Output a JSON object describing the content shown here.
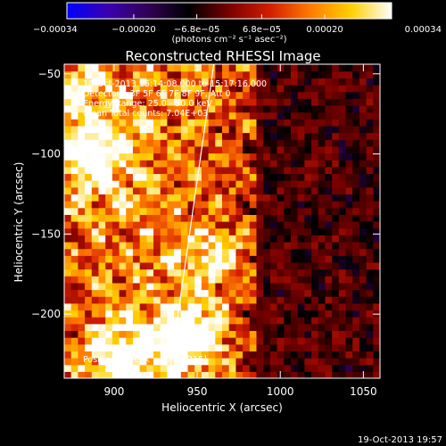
{
  "chart_data": {
    "type": "heatmap",
    "title": "Reconstructed RHESSI Image",
    "xlabel": "Heliocentric X (arcsec)",
    "ylabel": "Heliocentric Y (arcsec)",
    "xlim": [
      870,
      1060
    ],
    "ylim": [
      -240,
      -44
    ],
    "x_ticks": [
      900,
      950,
      1000,
      1050
    ],
    "x_tick_labels": [
      "900",
      "950",
      "1000",
      "1050"
    ],
    "y_ticks": [
      -50,
      -100,
      -150,
      -200
    ],
    "y_tick_labels": [
      "−50",
      "−100",
      "−150",
      "−200"
    ],
    "colorbar": {
      "range": [
        -0.00034,
        0.00034
      ],
      "ticks": [
        -0.00034,
        -0.0002,
        -6.8e-05,
        6.8e-05,
        0.0002,
        0.00034
      ],
      "tick_labels": [
        "−0.00034",
        "−0.00020",
        "−6.8e−05",
        "6.8e−05",
        "0.00020",
        "0.00034"
      ],
      "units_label": "(photons cm⁻² s⁻¹ asec⁻²)",
      "colormap": [
        "#0000ff",
        "#3a00b0",
        "#330055",
        "#000000",
        "#7a0000",
        "#d21e00",
        "#ff7a00",
        "#ffd000",
        "#ffffff"
      ]
    },
    "annotations": [
      "18-Oct-2013 15:14:08.000 to 15:17:16.000",
      "Detectors: 3F 5F 6F 7F 8F 9F, Att 0",
      "Energy Range: 25.0 - 50.0 keV",
      "Clean     Total counts: 7.04E+03"
    ],
    "peak_label": "Position of Peak = [945,-215]",
    "peak": [
      945,
      -215
    ],
    "limb_line": [
      [
        933,
        -240
      ],
      [
        960,
        -44
      ]
    ],
    "bright_sources": [
      {
        "x": 945,
        "y": -215,
        "intensity": 1.0
      },
      {
        "x": 888,
        "y": -100,
        "intensity": 0.85
      },
      {
        "x": 905,
        "y": -225,
        "intensity": 0.8
      },
      {
        "x": 960,
        "y": -165,
        "intensity": 0.55
      },
      {
        "x": 875,
        "y": -60,
        "intensity": 0.6
      }
    ],
    "timestamp": "19-Oct-2013 19:57"
  }
}
